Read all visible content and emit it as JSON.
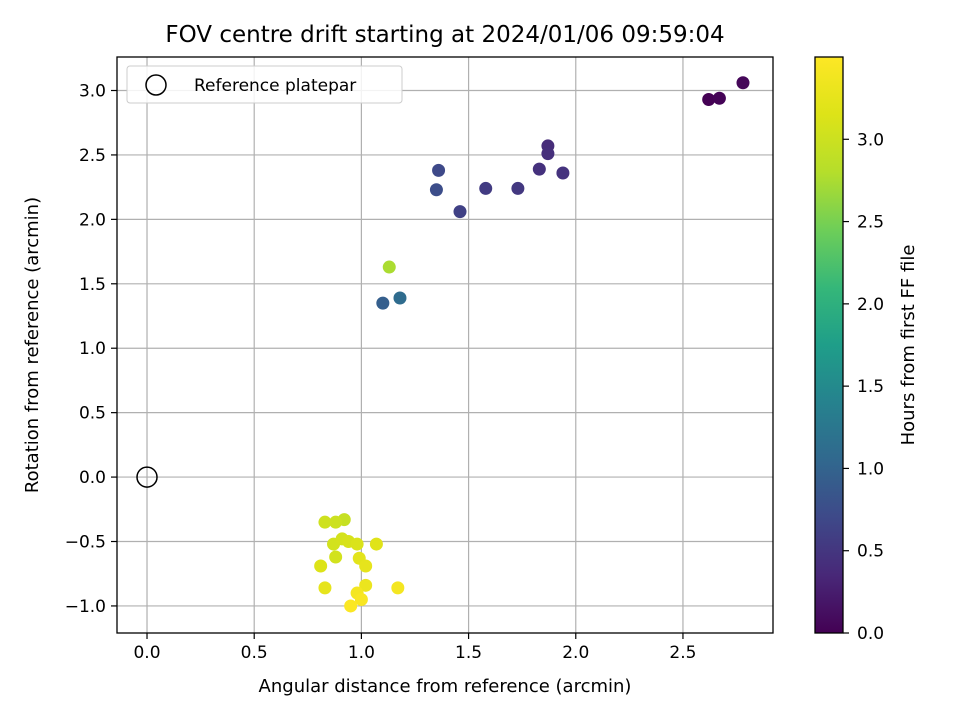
{
  "chart_data": {
    "type": "scatter",
    "title": "FOV centre drift starting at 2024/01/06 09:59:04",
    "xlabel": "Angular distance from reference (arcmin)",
    "ylabel": "Rotation from reference (arcmin)",
    "xlim": [
      -0.14,
      2.92
    ],
    "ylim": [
      -1.21,
      3.26
    ],
    "xticks": [
      0.0,
      0.5,
      1.0,
      1.5,
      2.0,
      2.5
    ],
    "xtick_labels": [
      "0.0",
      "0.5",
      "1.0",
      "1.5",
      "2.0",
      "2.5"
    ],
    "yticks": [
      -1.0,
      -0.5,
      0.0,
      0.5,
      1.0,
      1.5,
      2.0,
      2.5,
      3.0
    ],
    "ytick_labels": [
      "−1.0",
      "−0.5",
      "0.0",
      "0.5",
      "1.0",
      "1.5",
      "2.0",
      "2.5",
      "3.0"
    ],
    "grid": true,
    "legend": {
      "placement": "top-left",
      "entries": [
        "Reference platepar"
      ]
    },
    "reference_point": {
      "x": 0.0,
      "y": 0.0
    },
    "colorbar": {
      "label": "Hours from first FF file",
      "colormap": "viridis",
      "range": [
        0.0,
        3.5
      ],
      "ticks": [
        0.0,
        0.5,
        1.0,
        1.5,
        2.0,
        2.5,
        3.0
      ],
      "tick_labels": [
        "0.0",
        "0.5",
        "1.0",
        "1.5",
        "2.0",
        "2.5",
        "3.0"
      ]
    },
    "points": [
      {
        "x": 2.62,
        "y": 2.93,
        "t": 0.0
      },
      {
        "x": 2.67,
        "y": 2.94,
        "t": 0.02
      },
      {
        "x": 2.78,
        "y": 3.06,
        "t": 0.05
      },
      {
        "x": 1.87,
        "y": 2.57,
        "t": 0.4
      },
      {
        "x": 1.87,
        "y": 2.51,
        "t": 0.42
      },
      {
        "x": 1.83,
        "y": 2.39,
        "t": 0.45
      },
      {
        "x": 1.94,
        "y": 2.36,
        "t": 0.47
      },
      {
        "x": 1.73,
        "y": 2.24,
        "t": 0.52
      },
      {
        "x": 1.58,
        "y": 2.24,
        "t": 0.55
      },
      {
        "x": 1.46,
        "y": 2.06,
        "t": 0.62
      },
      {
        "x": 1.36,
        "y": 2.38,
        "t": 0.7
      },
      {
        "x": 1.35,
        "y": 2.23,
        "t": 0.75
      },
      {
        "x": 1.1,
        "y": 1.35,
        "t": 0.95
      },
      {
        "x": 1.18,
        "y": 1.39,
        "t": 1.1
      },
      {
        "x": 1.13,
        "y": 1.63,
        "t": 2.75
      },
      {
        "x": 0.92,
        "y": -0.33,
        "t": 2.95
      },
      {
        "x": 0.88,
        "y": -0.35,
        "t": 3.0
      },
      {
        "x": 0.83,
        "y": -0.35,
        "t": 3.02
      },
      {
        "x": 0.87,
        "y": -0.52,
        "t": 3.05
      },
      {
        "x": 0.91,
        "y": -0.48,
        "t": 3.07
      },
      {
        "x": 0.94,
        "y": -0.5,
        "t": 3.1
      },
      {
        "x": 0.98,
        "y": -0.52,
        "t": 3.12
      },
      {
        "x": 0.88,
        "y": -0.62,
        "t": 3.05
      },
      {
        "x": 0.81,
        "y": -0.69,
        "t": 3.15
      },
      {
        "x": 1.07,
        "y": -0.52,
        "t": 3.18
      },
      {
        "x": 0.99,
        "y": -0.63,
        "t": 3.22
      },
      {
        "x": 1.02,
        "y": -0.69,
        "t": 3.25
      },
      {
        "x": 0.83,
        "y": -0.86,
        "t": 3.25
      },
      {
        "x": 1.02,
        "y": -0.84,
        "t": 3.3
      },
      {
        "x": 1.17,
        "y": -0.86,
        "t": 3.4
      },
      {
        "x": 0.98,
        "y": -0.9,
        "t": 3.4
      },
      {
        "x": 1.0,
        "y": -0.95,
        "t": 3.45
      },
      {
        "x": 0.95,
        "y": -1.0,
        "t": 3.48
      }
    ]
  }
}
